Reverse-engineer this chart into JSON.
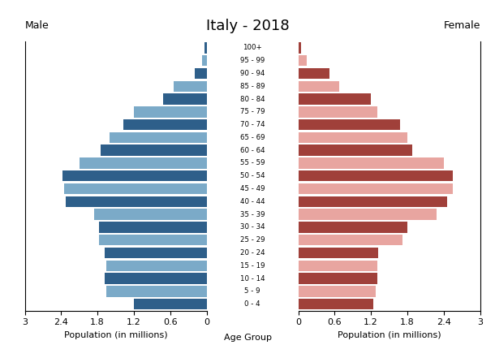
{
  "title": "Italy - 2018",
  "age_groups": [
    "0 - 4",
    "5 - 9",
    "10 - 14",
    "15 - 19",
    "20 - 24",
    "25 - 29",
    "30 - 34",
    "35 - 39",
    "40 - 44",
    "45 - 49",
    "50 - 54",
    "55 - 59",
    "60 - 64",
    "65 - 69",
    "70 - 74",
    "75 - 79",
    "80 - 84",
    "85 - 89",
    "90 - 94",
    "95 - 99",
    "100+"
  ],
  "male_values": [
    1.2,
    1.65,
    1.68,
    1.65,
    1.68,
    1.78,
    1.78,
    1.85,
    2.32,
    2.35,
    2.38,
    2.1,
    1.75,
    1.6,
    1.38,
    1.2,
    0.72,
    0.55,
    0.2,
    0.08,
    0.03
  ],
  "female_values": [
    1.24,
    1.28,
    1.3,
    1.3,
    1.32,
    1.72,
    1.8,
    2.28,
    2.45,
    2.55,
    2.55,
    2.4,
    1.88,
    1.8,
    1.68,
    1.3,
    1.2,
    0.68,
    0.52,
    0.14,
    0.05
  ],
  "male_dark_color": "#2E5F8A",
  "male_light_color": "#7BAAC8",
  "female_dark_color": "#A0403A",
  "female_light_color": "#E8A5A0",
  "xlim": 3.0,
  "xlabel_left": "Population (in millions)",
  "xlabel_center": "Age Group",
  "xlabel_right": "Population (in millions)",
  "label_male": "Male",
  "label_female": "Female"
}
